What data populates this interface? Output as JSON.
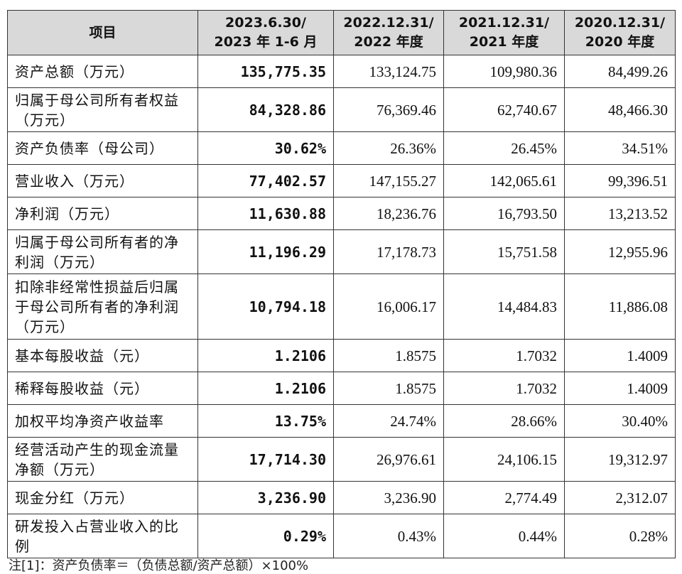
{
  "table": {
    "headers": [
      {
        "lines": [
          "项目"
        ]
      },
      {
        "lines": [
          "2023.6.30/",
          "2023 年 1-6 月"
        ]
      },
      {
        "lines": [
          "2022.12.31/",
          "2022 年度"
        ]
      },
      {
        "lines": [
          "2021.12.31/",
          "2021 年度"
        ]
      },
      {
        "lines": [
          "2020.12.31/",
          "2020 年度"
        ]
      }
    ],
    "rows": [
      {
        "item": "资产总额（万元）",
        "h1": "135,775.35",
        "y2022": "133,124.75",
        "y2021": "109,980.36",
        "y2020": "84,499.26"
      },
      {
        "item": "归属于母公司所有者权益（万元）",
        "h1": "84,328.86",
        "y2022": "76,369.46",
        "y2021": "62,740.67",
        "y2020": "48,466.30"
      },
      {
        "item": "资产负债率（母公司）",
        "h1": "30.62%",
        "y2022": "26.36%",
        "y2021": "26.45%",
        "y2020": "34.51%"
      },
      {
        "item": "营业收入（万元）",
        "h1": "77,402.57",
        "y2022": "147,155.27",
        "y2021": "142,065.61",
        "y2020": "99,396.51"
      },
      {
        "item": "净利润（万元）",
        "h1": "11,630.88",
        "y2022": "18,236.76",
        "y2021": "16,793.50",
        "y2020": "13,213.52"
      },
      {
        "item": "归属于母公司所有者的净利润（万元）",
        "h1": "11,196.29",
        "y2022": "17,178.73",
        "y2021": "15,751.58",
        "y2020": "12,955.96"
      },
      {
        "item": "扣除非经常性损益后归属于母公司所有者的净利润（万元）",
        "h1": "10,794.18",
        "y2022": "16,006.17",
        "y2021": "14,484.83",
        "y2020": "11,886.08"
      },
      {
        "item": "基本每股收益（元）",
        "h1": "1.2106",
        "y2022": "1.8575",
        "y2021": "1.7032",
        "y2020": "1.4009"
      },
      {
        "item": "稀释每股收益（元）",
        "h1": "1.2106",
        "y2022": "1.8575",
        "y2021": "1.7032",
        "y2020": "1.4009"
      },
      {
        "item": "加权平均净资产收益率",
        "h1": "13.75%",
        "y2022": "24.74%",
        "y2021": "28.66%",
        "y2020": "30.40%"
      },
      {
        "item": "经营活动产生的现金流量净额（万元）",
        "h1": "17,714.30",
        "y2022": "26,976.61",
        "y2021": "24,106.15",
        "y2020": "19,312.97"
      },
      {
        "item": "现金分红（万元）",
        "h1": "3,236.90",
        "y2022": "3,236.90",
        "y2021": "2,774.49",
        "y2020": "2,312.07"
      },
      {
        "item": "研发投入占营业收入的比例",
        "h1": "0.29%",
        "y2022": "0.43%",
        "y2021": "0.44%",
        "y2020": "0.28%"
      }
    ]
  },
  "footnote": "注[1]：资产负债率＝（负债总额/资产总额）×100%"
}
